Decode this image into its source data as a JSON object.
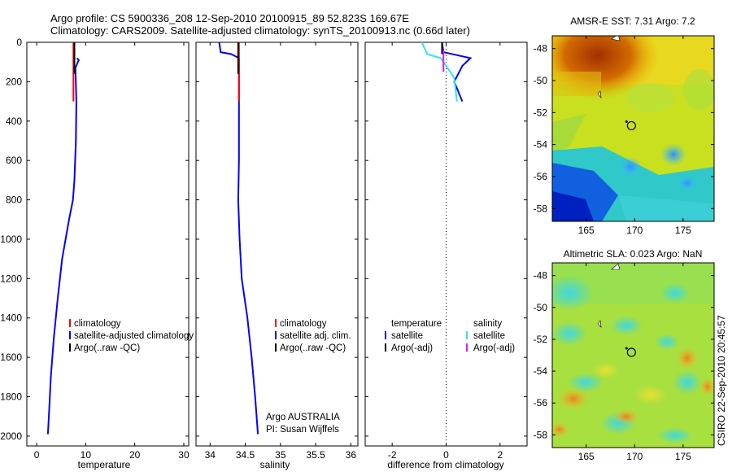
{
  "header": {
    "line1": "Argo profile: CS 5900336_208 12-Sep-2010 20100915_89 52.823S 169.67E",
    "line2": "Climatology: CARS2009. Satellite-adjusted climatology: synTS_20100913.nc (0.66d later)"
  },
  "footer_stamp": "CSIRO 22-Sep-2010 20:45:57",
  "colors": {
    "red": "#ff0000",
    "blue": "#0000ff",
    "black": "#000000",
    "cyan": "#33e5e5",
    "magenta": "#e519e5"
  },
  "chart_data": [
    {
      "type": "line",
      "name": "temperature",
      "xlabel": "temperature",
      "ylabel": "",
      "xlim": [
        -2,
        31
      ],
      "ylim": [
        2050,
        0
      ],
      "xticks": [
        0,
        10,
        20,
        30
      ],
      "yticks": [
        0,
        200,
        400,
        600,
        800,
        1000,
        1200,
        1400,
        1600,
        1800,
        2000
      ],
      "series": [
        {
          "name": "satellite-adjusted climatology",
          "color": "#0000ff",
          "points": [
            [
              8.2,
              80
            ],
            [
              8.6,
              90
            ],
            [
              8.4,
              100
            ],
            [
              7.9,
              130
            ],
            [
              8.1,
              300
            ],
            [
              8.0,
              500
            ],
            [
              7.7,
              700
            ],
            [
              7.4,
              800
            ],
            [
              6.6,
              900
            ],
            [
              5.2,
              1100
            ],
            [
              4.3,
              1300
            ],
            [
              3.5,
              1500
            ],
            [
              2.9,
              1700
            ],
            [
              2.6,
              1850
            ],
            [
              2.3,
              1990
            ]
          ]
        },
        {
          "name": "climatology",
          "color": "#ff0000",
          "points": [
            [
              7.5,
              0
            ],
            [
              7.5,
              300
            ]
          ]
        },
        {
          "name": "Argo(..raw -QC)",
          "color": "#000000",
          "points": [
            [
              7.7,
              0
            ],
            [
              7.7,
              160
            ]
          ]
        }
      ],
      "legend": [
        "climatology",
        "satellite-adjusted climatology",
        "Argo(..raw -QC)"
      ]
    },
    {
      "type": "line",
      "name": "salinity",
      "xlabel": "salinity",
      "ylabel": "",
      "xlim": [
        33.8,
        36.1
      ],
      "ylim": [
        2050,
        0
      ],
      "xticks": [
        34,
        34.5,
        35,
        35.5,
        36
      ],
      "xticklabels": [
        "34",
        "34.5",
        "35",
        "35.5",
        "36"
      ],
      "series": [
        {
          "name": "satellite adj. clim.",
          "color": "#0000ff",
          "points": [
            [
              34.13,
              0
            ],
            [
              34.15,
              50
            ],
            [
              34.3,
              60
            ],
            [
              34.41,
              80
            ],
            [
              34.41,
              200
            ],
            [
              34.41,
              400
            ],
            [
              34.41,
              600
            ],
            [
              34.4,
              800
            ],
            [
              34.42,
              1000
            ],
            [
              34.45,
              1200
            ],
            [
              34.53,
              1400
            ],
            [
              34.59,
              1600
            ],
            [
              34.64,
              1800
            ],
            [
              34.68,
              1990
            ]
          ]
        },
        {
          "name": "climatology",
          "color": "#ff0000",
          "points": [
            [
              34.41,
              0
            ],
            [
              34.41,
              300
            ]
          ]
        },
        {
          "name": "Argo(..raw -QC)",
          "color": "#000000",
          "points": [
            [
              34.4,
              0
            ],
            [
              34.4,
              160
            ]
          ]
        }
      ],
      "legend": [
        "climatology",
        "satellite adj. clim.",
        "Argo(..raw -QC)"
      ],
      "annotation": [
        "Argo AUSTRALIA",
        "PI: Susan Wijffels"
      ]
    },
    {
      "type": "line",
      "name": "difference",
      "xlabel": "difference from climatology",
      "ylabel": "",
      "xlim": [
        -3,
        3
      ],
      "ylim": [
        2050,
        0
      ],
      "xticks": [
        -2,
        0,
        2
      ],
      "xticklabels": [
        "-2",
        "0",
        "2"
      ],
      "zero_line": true,
      "series": [
        {
          "name": "temperature satellite",
          "color": "#0000ff",
          "points": [
            [
              -0.15,
              0
            ],
            [
              -0.1,
              50
            ],
            [
              0.9,
              80
            ],
            [
              0.6,
              120
            ],
            [
              0.3,
              200
            ],
            [
              0.6,
              300
            ]
          ]
        },
        {
          "name": "temperature Argo(-adj)",
          "color": "#000000",
          "points": [
            [
              -0.15,
              0
            ],
            [
              -0.15,
              60
            ]
          ]
        },
        {
          "name": "salinity satellite",
          "color": "#33e5e5",
          "points": [
            [
              -0.9,
              0
            ],
            [
              -0.7,
              60
            ],
            [
              -0.2,
              80
            ],
            [
              0.3,
              180
            ],
            [
              0.4,
              300
            ]
          ]
        },
        {
          "name": "salinity Argo(-adj)",
          "color": "#e519e5",
          "points": [
            [
              -0.1,
              40
            ],
            [
              -0.1,
              150
            ]
          ]
        }
      ],
      "legend_left": {
        "title": "temperature",
        "items": [
          "satellite",
          "Argo(-adj)"
        ]
      },
      "legend_right": {
        "title": "salinity",
        "items": [
          "satellite",
          "Argo(-adj)"
        ]
      }
    },
    {
      "type": "heatmap",
      "name": "sst_map",
      "title": "AMSR-E SST: 7.31 Argo: 7.2",
      "xlim": [
        161.5,
        178.2
      ],
      "ylim": [
        -58.8,
        -47.2
      ],
      "xticks": [
        165,
        170,
        175
      ],
      "yticks": [
        -48,
        -50,
        -52,
        -54,
        -56,
        -58
      ],
      "profile_location": [
        169.67,
        -52.82
      ]
    },
    {
      "type": "heatmap",
      "name": "sla_map",
      "title": "Altimetric SLA: 0.023 Argo: NaN",
      "xlim": [
        161.5,
        178.2
      ],
      "ylim": [
        -58.8,
        -47.2
      ],
      "xticks": [
        165,
        170,
        175
      ],
      "yticks": [
        -48,
        -50,
        -52,
        -54,
        -56,
        -58
      ],
      "profile_location": [
        169.67,
        -52.82
      ]
    }
  ]
}
